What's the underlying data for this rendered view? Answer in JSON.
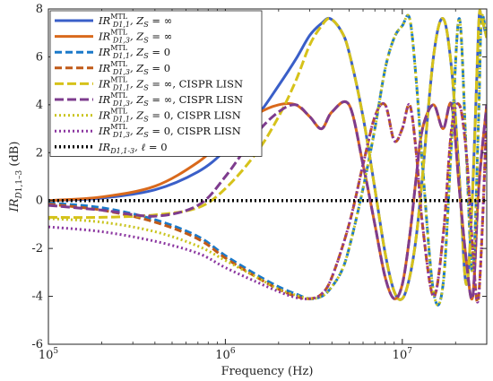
{
  "chart_data": {
    "type": "line",
    "xlabel": "Frequency (Hz)",
    "ylabel": "IR_{D1,1-3} (dB)",
    "xscale": "log",
    "xlim": [
      100000,
      30000000
    ],
    "ylim": [
      -6,
      8
    ],
    "yticks": [
      -6,
      -4,
      -2,
      0,
      2,
      4,
      6,
      8
    ],
    "xticks": [
      {
        "value": 100000,
        "base": "10",
        "exp": "5"
      },
      {
        "value": 1000000,
        "base": "10",
        "exp": "6"
      },
      {
        "value": 10000000,
        "base": "10",
        "exp": "7"
      }
    ],
    "legend_position": "top-left",
    "grid": false,
    "series": [
      {
        "name": "IR^MTL_{D1,1}, Z_S = ∞",
        "color": "#3a5fc8",
        "dash": "solid",
        "width": 3,
        "x": [
          100000,
          200000,
          400000,
          700000,
          1000000,
          1500000,
          2000000,
          2500000,
          3000000,
          3500000,
          3900000,
          4500000,
          5000000,
          6000000,
          7000000,
          8000000,
          9000000,
          10000000,
          11000000,
          12000000,
          13000000,
          15000000,
          17000000,
          19000000,
          21000000,
          23000000,
          25000000,
          27000000,
          28000000,
          30000000
        ],
        "y": [
          0,
          0.1,
          0.45,
          1.2,
          2.1,
          3.5,
          4.8,
          5.9,
          6.9,
          7.4,
          7.6,
          7.1,
          6.2,
          3.5,
          0.5,
          -2.2,
          -3.8,
          -4.1,
          -3.2,
          -1.5,
          1.0,
          6.0,
          7.6,
          5.5,
          1.0,
          -3.5,
          0.5,
          7.3,
          7.6,
          6.8
        ]
      },
      {
        "name": "IR^MTL_{D1,3}, Z_S = ∞",
        "color": "#d9691c",
        "dash": "solid",
        "width": 3,
        "x": [
          100000,
          200000,
          400000,
          700000,
          1000000,
          1500000,
          2000000,
          2500000,
          3000000,
          3500000,
          4000000,
          5000000,
          6000000,
          7000000,
          8000000,
          9000000,
          10000000,
          11000000,
          12000000,
          13000000,
          15000000,
          17000000,
          19000000,
          21000000,
          23000000,
          25000000,
          27000000,
          30000000
        ],
        "y": [
          0,
          0.15,
          0.6,
          1.6,
          2.6,
          3.6,
          4.0,
          4.0,
          3.5,
          3.0,
          3.7,
          4.0,
          1.5,
          -1.0,
          -3.2,
          -4.1,
          -3.5,
          -1.5,
          1.0,
          3.0,
          4.0,
          3.0,
          4.0,
          0.5,
          -2.5,
          -4.0,
          0.5,
          4.0
        ]
      },
      {
        "name": "IR^MTL_{D1,1}, Z_S = 0",
        "color": "#1a79c9",
        "dash": "8,4",
        "width": 3,
        "x": [
          100000,
          200000,
          400000,
          700000,
          1000000,
          1500000,
          2000000,
          2500000,
          3000000,
          3500000,
          3900000,
          4500000,
          5000000,
          6000000,
          7000000,
          8000000,
          9000000,
          10000000,
          11000000,
          12000000,
          13000000,
          15000000,
          17000000,
          19000000,
          21000000,
          23000000,
          25000000,
          27000000,
          28000000,
          30000000
        ],
        "y": [
          -0.1,
          -0.3,
          -0.8,
          -1.5,
          -2.3,
          -3.1,
          -3.6,
          -3.9,
          -4.1,
          -4.0,
          -3.7,
          -3.0,
          -2.0,
          0.5,
          3.0,
          5.5,
          6.8,
          7.3,
          7.6,
          5.0,
          1.5,
          -3.8,
          -3.5,
          2.5,
          7.6,
          2.0,
          -3.0,
          3.5,
          7.6,
          6.8
        ]
      },
      {
        "name": "IR^MTL_{D1,3}, Z_S = 0",
        "color": "#c05a18",
        "dash": "8,4",
        "width": 3,
        "x": [
          100000,
          200000,
          400000,
          700000,
          1000000,
          1500000,
          2000000,
          2500000,
          3000000,
          3500000,
          4000000,
          5000000,
          6000000,
          7000000,
          8000000,
          9000000,
          10000000,
          11000000,
          12000000,
          13000000,
          15000000,
          17000000,
          19000000,
          21000000,
          23000000,
          25000000,
          27000000,
          30000000
        ],
        "y": [
          -0.15,
          -0.4,
          -0.9,
          -1.6,
          -2.4,
          -3.2,
          -3.7,
          -4.0,
          -4.1,
          -3.9,
          -3.2,
          -1.0,
          1.5,
          3.5,
          4.0,
          2.5,
          3.0,
          4.0,
          2.0,
          -1.0,
          -4.0,
          -1.5,
          3.0,
          4.0,
          2.0,
          -2.0,
          -4.0,
          3.5
        ]
      },
      {
        "name": "IR^MTL_{D1,1}, Z_S = ∞, CISPR LISN",
        "color": "#d6c21a",
        "dash": "10,4",
        "width": 3,
        "x": [
          100000,
          200000,
          400000,
          700000,
          1000000,
          1500000,
          2000000,
          2500000,
          3000000,
          3500000,
          3900000,
          4500000,
          5000000,
          6000000,
          7000000,
          8000000,
          9000000,
          10000000,
          11000000,
          12000000,
          13000000,
          15000000,
          17000000,
          19000000,
          21000000,
          23000000,
          25000000,
          27000000,
          28000000,
          30000000
        ],
        "y": [
          -0.7,
          -0.7,
          -0.6,
          -0.3,
          0.5,
          2.0,
          3.5,
          5.0,
          6.5,
          7.3,
          7.6,
          7.1,
          6.2,
          3.5,
          0.5,
          -2.2,
          -3.8,
          -4.1,
          -3.2,
          -1.5,
          1.0,
          6.0,
          7.6,
          5.5,
          1.0,
          -3.5,
          0.5,
          7.3,
          7.6,
          6.8
        ]
      },
      {
        "name": "IR^MTL_{D1,3}, Z_S = ∞, CISPR LISN",
        "color": "#7e3c8e",
        "dash": "10,4",
        "width": 3,
        "x": [
          100000,
          200000,
          400000,
          700000,
          1000000,
          1500000,
          2000000,
          2500000,
          3000000,
          3500000,
          4000000,
          5000000,
          6000000,
          7000000,
          8000000,
          9000000,
          10000000,
          11000000,
          12000000,
          13000000,
          15000000,
          17000000,
          19000000,
          21000000,
          23000000,
          25000000,
          27000000,
          30000000
        ],
        "y": [
          -0.2,
          -0.4,
          -0.65,
          -0.2,
          1.0,
          2.8,
          3.7,
          4.0,
          3.5,
          3.0,
          3.7,
          4.0,
          1.5,
          -1.0,
          -3.2,
          -4.1,
          -3.5,
          -1.5,
          1.0,
          3.0,
          4.0,
          3.0,
          4.0,
          0.5,
          -2.5,
          -4.0,
          0.5,
          4.0
        ]
      },
      {
        "name": "IR^MTL_{D1,1}, Z_S = 0, CISPR LISN",
        "color": "#c9c41e",
        "dash": "2,3",
        "width": 3,
        "x": [
          100000,
          200000,
          400000,
          700000,
          1000000,
          1500000,
          2000000,
          2500000,
          3000000,
          3500000,
          3900000,
          4500000,
          5000000,
          6000000,
          7000000,
          8000000,
          9000000,
          10000000,
          11000000,
          12000000,
          13000000,
          15000000,
          17000000,
          19000000,
          21000000,
          23000000,
          25000000,
          27000000,
          28000000,
          30000000
        ],
        "y": [
          -0.75,
          -0.9,
          -1.3,
          -1.9,
          -2.5,
          -3.2,
          -3.7,
          -3.95,
          -4.1,
          -4.0,
          -3.7,
          -3.0,
          -2.0,
          0.5,
          3.0,
          5.5,
          6.8,
          7.3,
          7.6,
          5.0,
          1.5,
          -3.8,
          -3.5,
          2.5,
          7.6,
          2.0,
          -3.0,
          3.5,
          7.6,
          6.8
        ]
      },
      {
        "name": "IR^MTL_{D1,3}, Z_S = 0, CISPR LISN",
        "color": "#8b36a0",
        "dash": "2,3",
        "width": 3,
        "x": [
          100000,
          200000,
          400000,
          700000,
          1000000,
          1500000,
          2000000,
          2500000,
          3000000,
          3500000,
          4000000,
          5000000,
          6000000,
          7000000,
          8000000,
          9000000,
          10000000,
          11000000,
          12000000,
          13000000,
          15000000,
          17000000,
          19000000,
          21000000,
          23000000,
          25000000,
          27000000,
          30000000
        ],
        "y": [
          -1.1,
          -1.3,
          -1.7,
          -2.2,
          -2.8,
          -3.4,
          -3.8,
          -4.05,
          -4.1,
          -3.9,
          -3.2,
          -1.0,
          1.5,
          3.5,
          4.0,
          2.5,
          3.0,
          4.0,
          2.0,
          -1.0,
          -4.0,
          -1.5,
          3.0,
          4.0,
          2.0,
          -2.0,
          -4.0,
          3.5
        ]
      },
      {
        "name": "IR_{D1,1-3}, ℓ = 0",
        "color": "#000000",
        "dash": "2,3",
        "width": 3.5,
        "x": [
          100000,
          30000000
        ],
        "y": [
          0,
          0
        ]
      }
    ],
    "legend": [
      {
        "main": "IR",
        "sup": "MTL",
        "sub": "D1,1",
        "rest": ", Z",
        "rest_sub": "S",
        "rest2": " = ∞",
        "tail": ""
      },
      {
        "main": "IR",
        "sup": "MTL",
        "sub": "D1,3",
        "rest": ", Z",
        "rest_sub": "S",
        "rest2": " = ∞",
        "tail": ""
      },
      {
        "main": "IR",
        "sup": "MTL",
        "sub": "D1,1",
        "rest": ", Z",
        "rest_sub": "S",
        "rest2": " = 0",
        "tail": ""
      },
      {
        "main": "IR",
        "sup": "MTL",
        "sub": "D1,3",
        "rest": ", Z",
        "rest_sub": "S",
        "rest2": " = 0",
        "tail": ""
      },
      {
        "main": "IR",
        "sup": "MTL",
        "sub": "D1,1",
        "rest": ", Z",
        "rest_sub": "S",
        "rest2": " = ∞",
        "tail": ", CISPR LISN"
      },
      {
        "main": "IR",
        "sup": "MTL",
        "sub": "D1,3",
        "rest": ", Z",
        "rest_sub": "S",
        "rest2": " = ∞",
        "tail": ", CISPR LISN"
      },
      {
        "main": "IR",
        "sup": "MTL",
        "sub": "D1,1",
        "rest": ", Z",
        "rest_sub": "S",
        "rest2": " = 0",
        "tail": ", CISPR LISN"
      },
      {
        "main": "IR",
        "sup": "MTL",
        "sub": "D1,3",
        "rest": ", Z",
        "rest_sub": "S",
        "rest2": " = 0",
        "tail": ", CISPR LISN"
      },
      {
        "main": "IR",
        "sup": "",
        "sub": "D1,1-3",
        "rest": ", ℓ",
        "rest_sub": "",
        "rest2": " = 0",
        "tail": ""
      }
    ]
  }
}
